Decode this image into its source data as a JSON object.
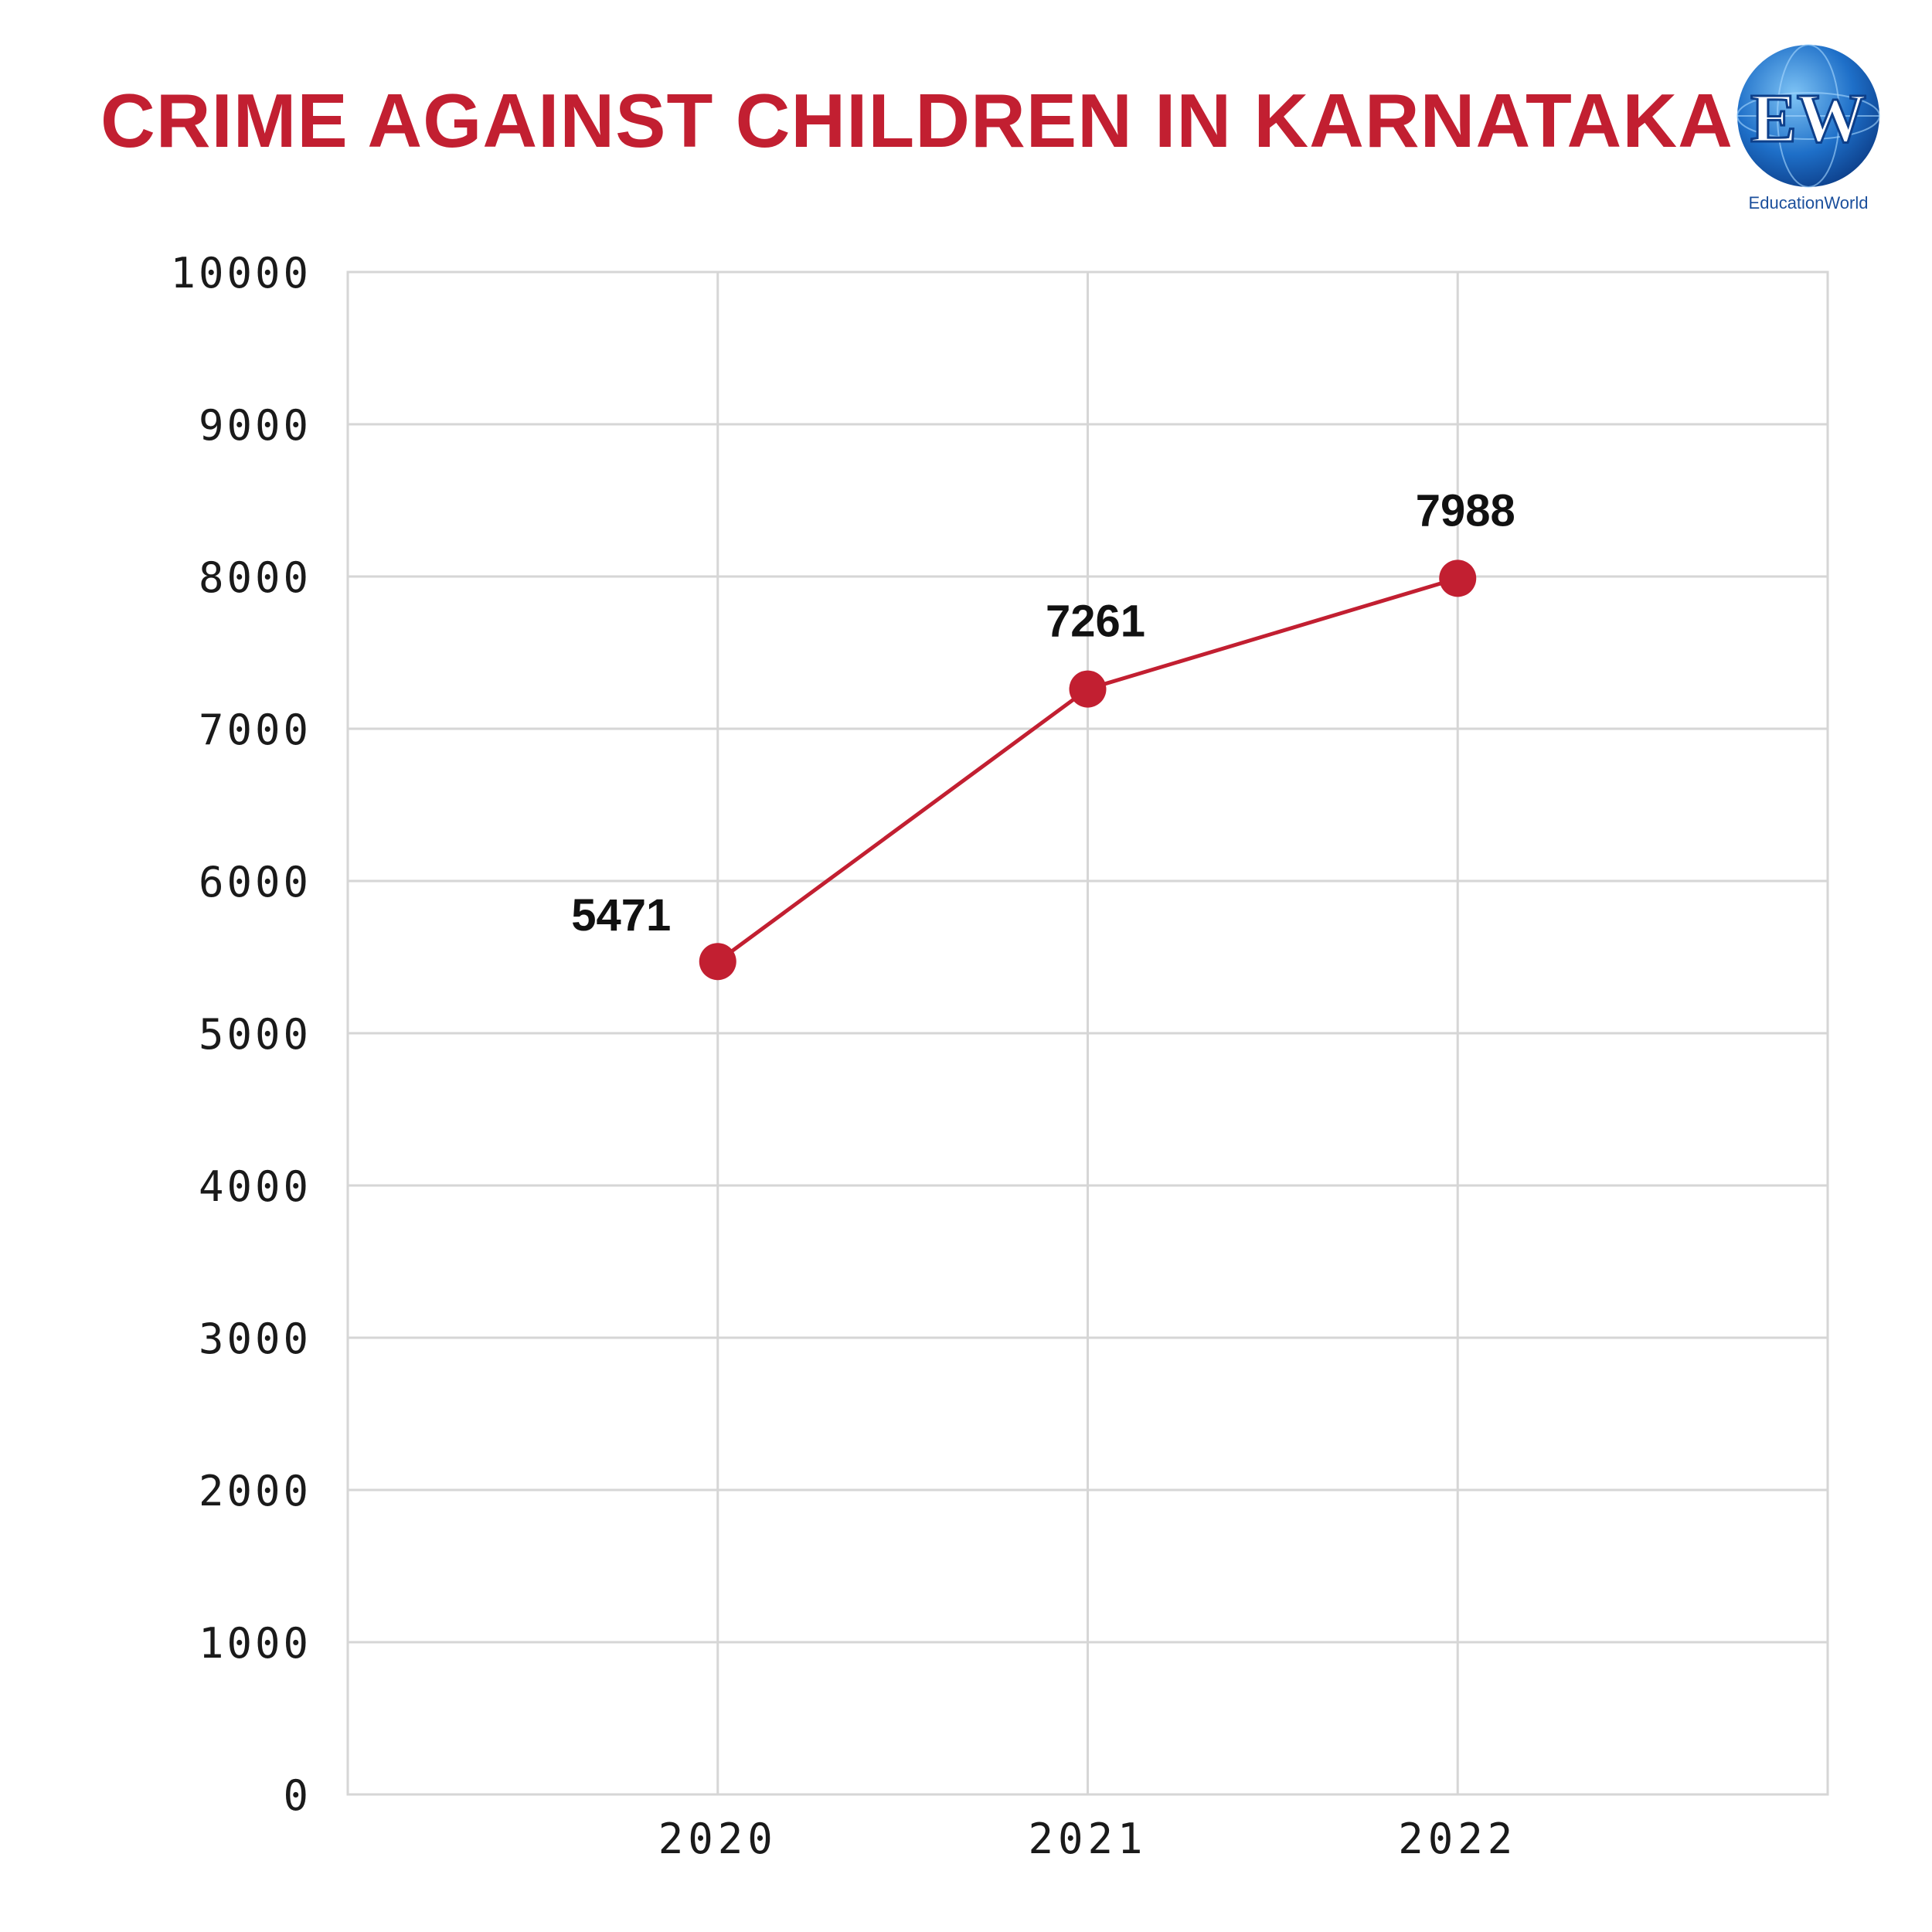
{
  "title": "CRIME AGAINST CHILDREN IN KARNATAKA",
  "logo": {
    "monogram": "EW",
    "caption": "EducationWorld"
  },
  "colors": {
    "accent": "#c21f31",
    "grid": "#d6d6d6",
    "text": "#1a1a1a",
    "logo_blue": "#1e6fc8"
  },
  "chart_data": {
    "type": "line",
    "title": "CRIME AGAINST CHILDREN IN KARNATAKA",
    "x": [
      "2020",
      "2021",
      "2022"
    ],
    "series": [
      {
        "values": [
          5471,
          7261,
          7988
        ],
        "labels": [
          "5471",
          "7261",
          "7988"
        ]
      }
    ],
    "yticks": [
      "0",
      "1000",
      "2000",
      "3000",
      "4000",
      "5000",
      "6000",
      "7000",
      "8000",
      "9000",
      "10000"
    ],
    "ylim": [
      0,
      10000
    ],
    "xlim": [
      2019,
      2023
    ],
    "grid": true,
    "legend": "none"
  }
}
